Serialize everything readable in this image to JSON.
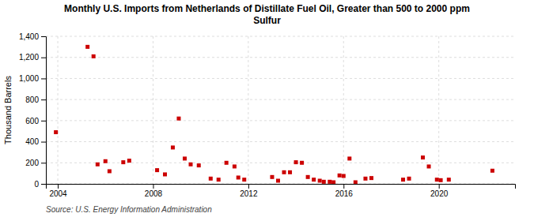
{
  "chart_data": {
    "type": "scatter",
    "title": "Monthly U.S. Imports from Netherlands of Distillate Fuel Oil, Greater than 500 to 2000 ppm\nSulfur",
    "y_label": "Thousand Barrels",
    "source": "Source: U.S. Energy Information Administration",
    "color": "#cc0000",
    "marker": "square",
    "grid": true,
    "xlim": [
      2003.5,
      2023.2
    ],
    "ylim": [
      0,
      1400
    ],
    "xticks": [
      2004,
      2008,
      2012,
      2016,
      2020
    ],
    "yticks": [
      0,
      200,
      400,
      600,
      800,
      {
        "value": 1000,
        "label": "1,000"
      },
      {
        "value": 1200,
        "label": "1,200"
      },
      {
        "value": 1400,
        "label": "1,400"
      }
    ],
    "x": [
      2003.92,
      2005.25,
      2005.5,
      2005.67,
      2006.0,
      2006.17,
      2006.75,
      2007.0,
      2008.17,
      2008.5,
      2008.83,
      2009.08,
      2009.33,
      2009.58,
      2009.92,
      2010.42,
      2010.75,
      2011.08,
      2011.42,
      2011.58,
      2011.83,
      2013.0,
      2013.25,
      2013.5,
      2013.75,
      2014.0,
      2014.25,
      2014.5,
      2014.75,
      2015.0,
      2015.17,
      2015.42,
      2015.58,
      2015.83,
      2016.0,
      2016.25,
      2016.5,
      2016.92,
      2017.17,
      2018.5,
      2018.75,
      2019.33,
      2019.58,
      2019.92,
      2020.08,
      2020.42,
      2022.25
    ],
    "values": [
      490,
      1300,
      1210,
      185,
      215,
      120,
      205,
      220,
      130,
      90,
      345,
      620,
      240,
      185,
      175,
      50,
      40,
      200,
      165,
      60,
      40,
      65,
      30,
      110,
      110,
      205,
      200,
      65,
      40,
      30,
      20,
      20,
      15,
      80,
      75,
      240,
      15,
      50,
      55,
      40,
      50,
      250,
      165,
      40,
      35,
      40,
      125
    ]
  }
}
